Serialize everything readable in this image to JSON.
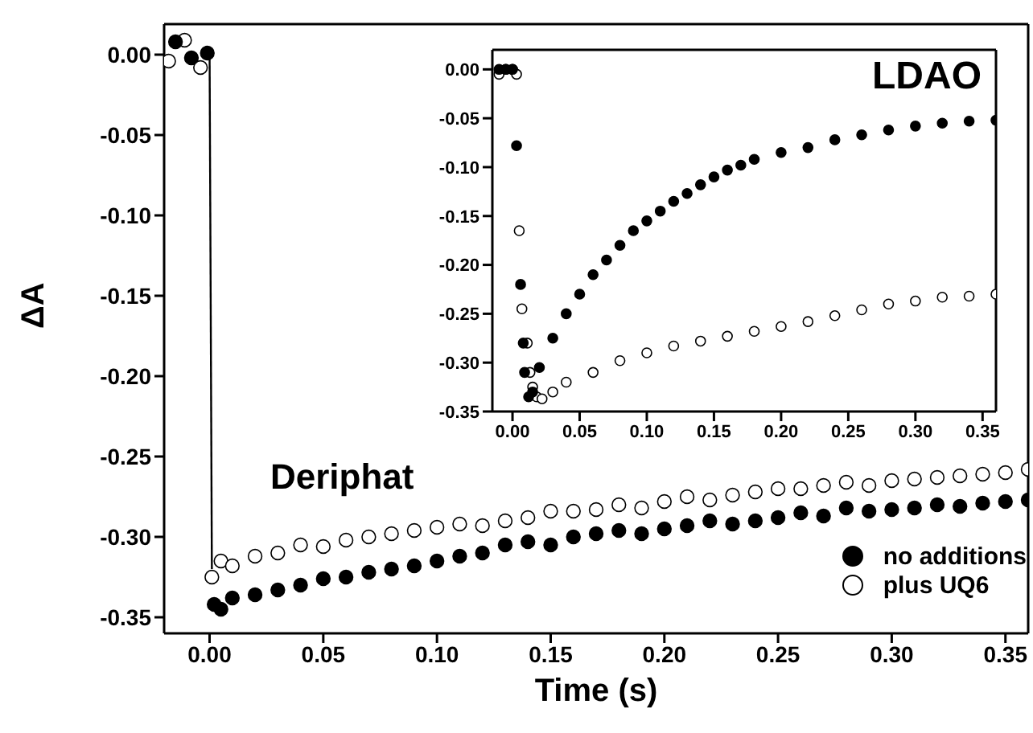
{
  "chart_data": [
    {
      "type": "scatter",
      "xlabel": "Time (s)",
      "ylabel": "ΔA",
      "annotations": [
        "Deriphat"
      ],
      "legend": "bottom right",
      "marker": "circle",
      "grid": false,
      "xlim": [
        -0.02,
        0.36
      ],
      "ylim": [
        -0.36,
        0.019
      ],
      "xticks": [
        {
          "value": 0,
          "label": "0.00"
        },
        {
          "value": 0.05,
          "label": "0.05"
        },
        {
          "value": 0.1,
          "label": "0.10"
        },
        {
          "value": 0.15,
          "label": "0.15"
        },
        {
          "value": 0.2,
          "label": "0.20"
        },
        {
          "value": 0.25,
          "label": "0.25"
        },
        {
          "value": 0.3,
          "label": "0.30"
        },
        {
          "value": 0.35,
          "label": "0.35"
        }
      ],
      "yticks": [
        {
          "value": 0,
          "label": "0.00"
        },
        {
          "value": -0.05,
          "label": "-0.05"
        },
        {
          "value": -0.1,
          "label": "-0.10"
        },
        {
          "value": -0.15,
          "label": "-0.15"
        },
        {
          "value": -0.2,
          "label": "-0.20"
        },
        {
          "value": -0.25,
          "label": "-0.25"
        },
        {
          "value": -0.3,
          "label": "-0.30"
        },
        {
          "value": -0.35,
          "label": "-0.35"
        }
      ],
      "series": [
        {
          "type": "line",
          "marker": "none",
          "color": "#000000",
          "x": [
            0,
            0.001
          ],
          "values": [
            0,
            -0.32
          ]
        },
        {
          "name": "plus UQ6",
          "color": "#ffffff",
          "x": [
            -0.018,
            -0.011,
            -0.004,
            0.001,
            0.005,
            0.01,
            0.02,
            0.03,
            0.04,
            0.05,
            0.06,
            0.07,
            0.08,
            0.09,
            0.1,
            0.11,
            0.12,
            0.13,
            0.14,
            0.15,
            0.16,
            0.17,
            0.18,
            0.19,
            0.2,
            0.21,
            0.22,
            0.23,
            0.24,
            0.25,
            0.26,
            0.27,
            0.28,
            0.29,
            0.3,
            0.31,
            0.32,
            0.33,
            0.34,
            0.35,
            0.36
          ],
          "values": [
            -0.004,
            0.009,
            -0.008,
            -0.325,
            -0.315,
            -0.318,
            -0.312,
            -0.31,
            -0.305,
            -0.306,
            -0.302,
            -0.3,
            -0.298,
            -0.296,
            -0.294,
            -0.292,
            -0.293,
            -0.29,
            -0.288,
            -0.284,
            -0.284,
            -0.283,
            -0.28,
            -0.282,
            -0.278,
            -0.275,
            -0.277,
            -0.274,
            -0.272,
            -0.27,
            -0.27,
            -0.268,
            -0.266,
            -0.268,
            -0.265,
            -0.264,
            -0.263,
            -0.262,
            -0.261,
            -0.26,
            -0.258
          ]
        },
        {
          "name": "no additions",
          "color": "#000000",
          "x": [
            -0.015,
            -0.008,
            -0.001,
            0.002,
            0.005,
            0.01,
            0.02,
            0.03,
            0.04,
            0.05,
            0.06,
            0.07,
            0.08,
            0.09,
            0.1,
            0.11,
            0.12,
            0.13,
            0.14,
            0.15,
            0.16,
            0.17,
            0.18,
            0.19,
            0.2,
            0.21,
            0.22,
            0.23,
            0.24,
            0.25,
            0.26,
            0.27,
            0.28,
            0.29,
            0.3,
            0.31,
            0.32,
            0.33,
            0.34,
            0.35,
            0.36
          ],
          "values": [
            0.008,
            -0.002,
            0.001,
            -0.342,
            -0.345,
            -0.338,
            -0.336,
            -0.333,
            -0.33,
            -0.326,
            -0.325,
            -0.322,
            -0.32,
            -0.318,
            -0.315,
            -0.312,
            -0.31,
            -0.305,
            -0.303,
            -0.305,
            -0.3,
            -0.298,
            -0.296,
            -0.298,
            -0.295,
            -0.293,
            -0.29,
            -0.292,
            -0.29,
            -0.288,
            -0.285,
            -0.287,
            -0.282,
            -0.284,
            -0.283,
            -0.282,
            -0.28,
            -0.281,
            -0.279,
            -0.278,
            -0.277
          ]
        }
      ]
    },
    {
      "type": "scatter",
      "annotations": [
        "LDAO"
      ],
      "marker": "circle",
      "grid": false,
      "xlim": [
        -0.015,
        0.36
      ],
      "ylim": [
        -0.35,
        0.02
      ],
      "xticks": [
        {
          "value": 0,
          "label": "0.00"
        },
        {
          "value": 0.05,
          "label": "0.05"
        },
        {
          "value": 0.1,
          "label": "0.10"
        },
        {
          "value": 0.15,
          "label": "0.15"
        },
        {
          "value": 0.2,
          "label": "0.20"
        },
        {
          "value": 0.25,
          "label": "0.25"
        },
        {
          "value": 0.3,
          "label": "0.30"
        },
        {
          "value": 0.35,
          "label": "0.35"
        }
      ],
      "yticks": [
        {
          "value": 0,
          "label": "0.00"
        },
        {
          "value": -0.05,
          "label": "-0.05"
        },
        {
          "value": -0.1,
          "label": "-0.10"
        },
        {
          "value": -0.15,
          "label": "-0.15"
        },
        {
          "value": -0.2,
          "label": "-0.20"
        },
        {
          "value": -0.25,
          "label": "-0.25"
        },
        {
          "value": -0.3,
          "label": "-0.30"
        },
        {
          "value": -0.35,
          "label": "-0.35"
        }
      ],
      "series": [
        {
          "color": "#ffffff",
          "x": [
            -0.01,
            -0.005,
            0,
            0.003,
            0.005,
            0.007,
            0.011,
            0.013,
            0.015,
            0.018,
            0.022,
            0.03,
            0.04,
            0.06,
            0.08,
            0.1,
            0.12,
            0.14,
            0.16,
            0.18,
            0.2,
            0.22,
            0.24,
            0.26,
            0.28,
            0.3,
            0.32,
            0.34,
            0.36
          ],
          "values": [
            -0.005,
            0,
            0,
            -0.005,
            -0.165,
            -0.245,
            -0.28,
            -0.31,
            -0.325,
            -0.335,
            -0.337,
            -0.33,
            -0.32,
            -0.31,
            -0.298,
            -0.29,
            -0.283,
            -0.278,
            -0.273,
            -0.268,
            -0.263,
            -0.258,
            -0.252,
            -0.246,
            -0.24,
            -0.237,
            -0.233,
            -0.232,
            -0.23
          ]
        },
        {
          "color": "#000000",
          "x": [
            -0.01,
            -0.005,
            0,
            0.003,
            0.006,
            0.008,
            0.009,
            0.012,
            0.015,
            0.02,
            0.03,
            0.04,
            0.05,
            0.06,
            0.07,
            0.08,
            0.09,
            0.1,
            0.11,
            0.12,
            0.13,
            0.14,
            0.15,
            0.16,
            0.17,
            0.18,
            0.2,
            0.22,
            0.24,
            0.26,
            0.28,
            0.3,
            0.32,
            0.34,
            0.36
          ],
          "values": [
            0,
            0,
            0,
            -0.078,
            -0.22,
            -0.28,
            -0.31,
            -0.335,
            -0.33,
            -0.305,
            -0.275,
            -0.25,
            -0.23,
            -0.21,
            -0.195,
            -0.18,
            -0.165,
            -0.155,
            -0.145,
            -0.135,
            -0.127,
            -0.118,
            -0.11,
            -0.103,
            -0.098,
            -0.092,
            -0.085,
            -0.08,
            -0.072,
            -0.067,
            -0.062,
            -0.058,
            -0.055,
            -0.053,
            -0.052
          ]
        }
      ]
    }
  ]
}
